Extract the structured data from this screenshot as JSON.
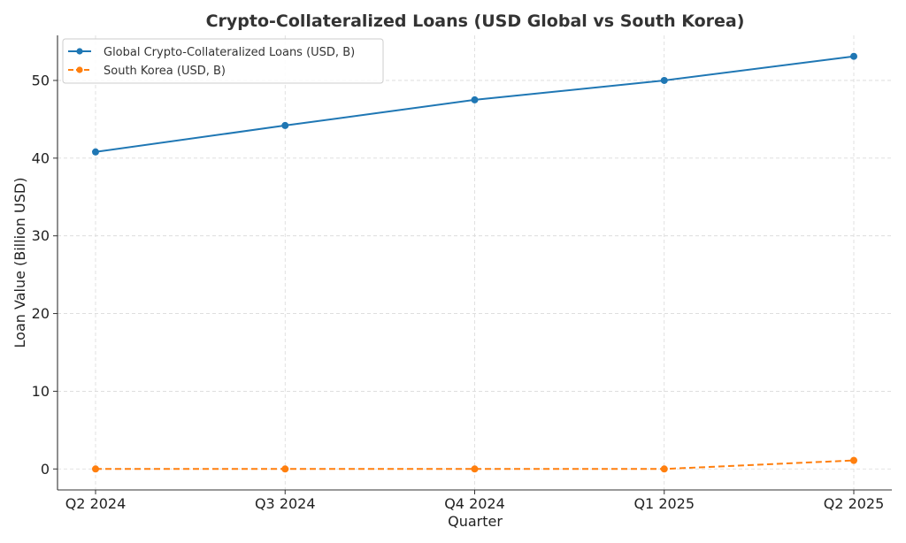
{
  "chart_data": {
    "type": "line",
    "title": "Crypto-Collateralized Loans (USD Global vs South Korea)",
    "xlabel": "Quarter",
    "ylabel": "Loan Value (Billion USD)",
    "categories": [
      "Q2 2024",
      "Q3 2024",
      "Q4 2024",
      "Q1 2025",
      "Q2 2025"
    ],
    "ylim": [
      -2.7,
      55.8
    ],
    "yticks": [
      0,
      10,
      20,
      30,
      40,
      50
    ],
    "grid": true,
    "legend_position": "top-left",
    "series": [
      {
        "name": "Global Crypto-Collateralized Loans (USD, B)",
        "values": [
          40.8,
          44.2,
          47.5,
          50.0,
          53.1
        ],
        "color": "#1f77b4",
        "line_style": "solid",
        "marker": "circle"
      },
      {
        "name": "South Korea (USD, B)",
        "values": [
          0,
          0,
          0,
          0,
          1.1
        ],
        "color": "#ff7f0e",
        "line_style": "dashed",
        "marker": "circle"
      }
    ]
  }
}
